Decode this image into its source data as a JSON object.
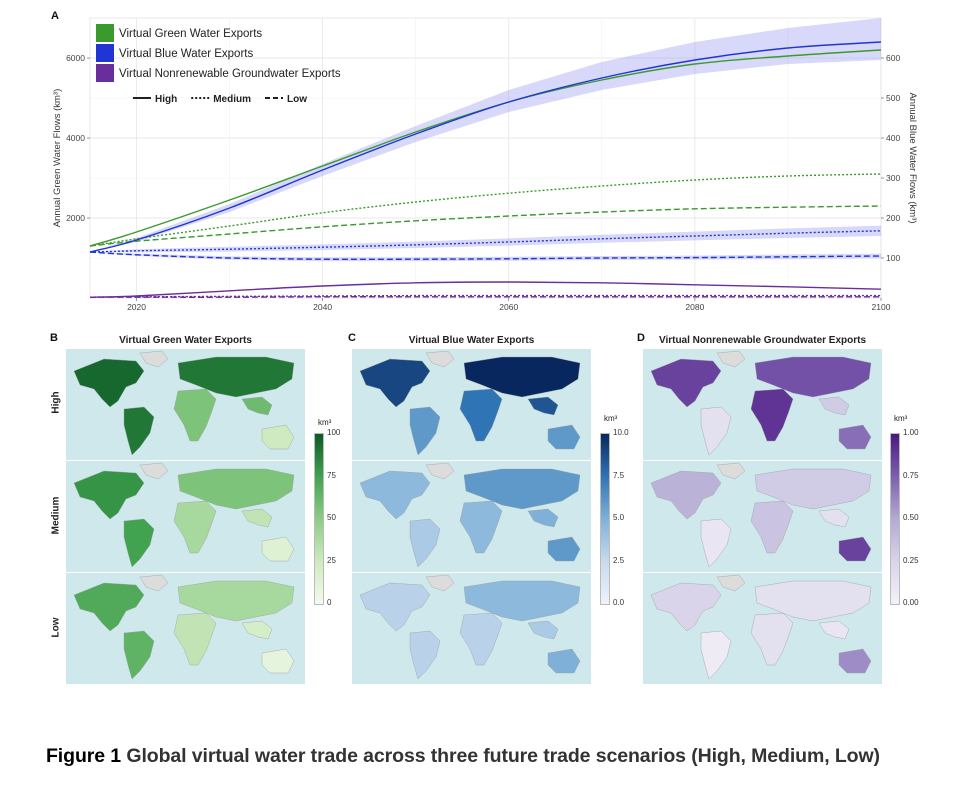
{
  "panel_letters": {
    "a": "A",
    "b": "B",
    "c": "C",
    "d": "D"
  },
  "chart_data": {
    "type": "line",
    "title": "",
    "xlabel": "",
    "ylabel": "Annual Green Water Flows (km³)",
    "y2label": "Annual Blue Water Flows (km³)",
    "xlim": [
      2015,
      2100
    ],
    "ylim": [
      0,
      7000
    ],
    "y2lim": [
      0,
      700
    ],
    "xticks": [
      2020,
      2040,
      2060,
      2080,
      2100
    ],
    "yticks": [
      2000,
      4000,
      6000
    ],
    "y2ticks": [
      100,
      200,
      300,
      400,
      500,
      600
    ],
    "grid": true,
    "legend_position": "top-left",
    "legend": [
      {
        "label": "Virtual Green Water Exports",
        "color": "#3a9a2e"
      },
      {
        "label": "Virtual Blue Water Exports",
        "color": "#2035d4"
      },
      {
        "label": "Virtual Nonrenewable Groundwater Exports",
        "color": "#6a2d9c"
      }
    ],
    "linetype_legend": [
      {
        "label": "High",
        "style": "solid"
      },
      {
        "label": "Medium",
        "style": "dotted"
      },
      {
        "label": "Low",
        "style": "dashed"
      }
    ],
    "series": [
      {
        "name": "Virtual Green Water Exports — High",
        "axis": "left",
        "style": "solid",
        "color": "#3a9a2e",
        "x": [
          2015,
          2020,
          2030,
          2040,
          2050,
          2060,
          2070,
          2080,
          2090,
          2100
        ],
        "y": [
          1300,
          1650,
          2450,
          3300,
          4150,
          4900,
          5450,
          5850,
          6050,
          6200
        ]
      },
      {
        "name": "Virtual Green Water Exports — Medium",
        "axis": "left",
        "style": "dotted",
        "color": "#3a9a2e",
        "x": [
          2015,
          2020,
          2030,
          2040,
          2050,
          2060,
          2070,
          2080,
          2090,
          2100
        ],
        "y": [
          1300,
          1480,
          1800,
          2130,
          2400,
          2620,
          2800,
          2950,
          3050,
          3100
        ]
      },
      {
        "name": "Virtual Green Water Exports — Low",
        "axis": "left",
        "style": "dashed",
        "color": "#3a9a2e",
        "x": [
          2015,
          2020,
          2030,
          2040,
          2050,
          2060,
          2070,
          2080,
          2090,
          2100
        ],
        "y": [
          1300,
          1420,
          1600,
          1780,
          1930,
          2050,
          2150,
          2230,
          2270,
          2300
        ]
      },
      {
        "name": "Virtual Blue Water Exports — High",
        "axis": "right",
        "style": "solid",
        "color": "#2035d4",
        "x": [
          2015,
          2020,
          2030,
          2040,
          2050,
          2060,
          2070,
          2080,
          2090,
          2100
        ],
        "y": [
          115,
          145,
          225,
          320,
          410,
          490,
          550,
          595,
          625,
          640
        ]
      },
      {
        "name": "Virtual Blue Water Exports — Medium",
        "axis": "right",
        "style": "dotted",
        "color": "#2035d4",
        "x": [
          2015,
          2020,
          2030,
          2040,
          2050,
          2060,
          2070,
          2080,
          2090,
          2100
        ],
        "y": [
          115,
          118,
          122,
          127,
          133,
          140,
          148,
          155,
          162,
          168
        ]
      },
      {
        "name": "Virtual Blue Water Exports — Low",
        "axis": "right",
        "style": "dashed",
        "color": "#2035d4",
        "x": [
          2015,
          2020,
          2030,
          2040,
          2050,
          2060,
          2070,
          2080,
          2090,
          2100
        ],
        "y": [
          115,
          108,
          100,
          97,
          97,
          98,
          100,
          101,
          103,
          105
        ]
      },
      {
        "name": "Virtual Nonrenewable Groundwater Exports — High",
        "axis": "right",
        "style": "solid",
        "color": "#6a2d9c",
        "x": [
          2015,
          2020,
          2030,
          2040,
          2050,
          2060,
          2070,
          2080,
          2090,
          2100
        ],
        "y": [
          2,
          5,
          18,
          30,
          38,
          40,
          38,
          33,
          28,
          22
        ]
      },
      {
        "name": "Virtual Nonrenewable Groundwater Exports — Medium",
        "axis": "right",
        "style": "dotted",
        "color": "#6a2d9c",
        "x": [
          2015,
          2020,
          2030,
          2040,
          2050,
          2060,
          2070,
          2080,
          2090,
          2100
        ],
        "y": [
          2,
          3,
          4,
          5,
          6,
          6,
          6,
          6,
          6,
          6
        ]
      },
      {
        "name": "Virtual Nonrenewable Groundwater Exports — Low",
        "axis": "right",
        "style": "dashed",
        "color": "#6a2d9c",
        "x": [
          2015,
          2020,
          2030,
          2040,
          2050,
          2060,
          2070,
          2080,
          2090,
          2100
        ],
        "y": [
          2,
          2,
          2,
          3,
          3,
          3,
          3,
          3,
          3,
          3
        ]
      }
    ],
    "bands": [
      {
        "series": "Virtual Blue Water Exports — High",
        "axis": "right",
        "color": "#8c8ff0",
        "x": [
          2015,
          2020,
          2030,
          2040,
          2050,
          2060,
          2070,
          2080,
          2090,
          2100
        ],
        "lower": [
          115,
          140,
          215,
          305,
          390,
          465,
          520,
          560,
          585,
          595
        ],
        "upper": [
          115,
          150,
          235,
          335,
          430,
          520,
          590,
          640,
          675,
          700
        ]
      },
      {
        "series": "Virtual Blue Water Exports — Medium",
        "axis": "right",
        "color": "#8c8ff0",
        "x": [
          2015,
          2020,
          2030,
          2040,
          2050,
          2060,
          2070,
          2080,
          2090,
          2100
        ],
        "lower": [
          115,
          114,
          116,
          120,
          125,
          131,
          138,
          144,
          150,
          155
        ],
        "upper": [
          115,
          122,
          128,
          134,
          141,
          149,
          158,
          166,
          174,
          181
        ]
      },
      {
        "series": "Virtual Blue Water Exports — Low",
        "axis": "right",
        "color": "#8c8ff0",
        "x": [
          2015,
          2020,
          2030,
          2040,
          2050,
          2060,
          2070,
          2080,
          2090,
          2100
        ],
        "lower": [
          115,
          105,
          96,
          92,
          92,
          93,
          95,
          96,
          97,
          99
        ],
        "upper": [
          115,
          111,
          104,
          102,
          102,
          103,
          105,
          106,
          109,
          111
        ]
      }
    ]
  },
  "maps": {
    "row_labels": [
      "High",
      "Medium",
      "Low"
    ],
    "unit": "km³",
    "columns": [
      {
        "title": "Virtual Green Water Exports",
        "palette": [
          "#f4fbee",
          "#cfeac0",
          "#8ccc85",
          "#41a24f",
          "#0c5a26"
        ],
        "colorbar_ticks": [
          "100",
          "75",
          "50",
          "25",
          "0"
        ],
        "intensity": [
          [
            0.95,
            0.35,
            0.9,
            0.55,
            0.9,
            0.6,
            0.25
          ],
          [
            0.8,
            0.25,
            0.75,
            0.4,
            0.55,
            0.3,
            0.15
          ],
          [
            0.7,
            0.15,
            0.65,
            0.3,
            0.4,
            0.2,
            0.1
          ]
        ]
      },
      {
        "title": "Virtual Blue Water Exports",
        "palette": [
          "#eef3fa",
          "#c7daee",
          "#7fb1d8",
          "#2f74b5",
          "#08275e"
        ],
        "colorbar_ticks": [
          "10.0",
          "7.5",
          "5.0",
          "2.5",
          "0.0"
        ],
        "intensity": [
          [
            0.9,
            0.3,
            0.6,
            0.75,
            1.0,
            0.85,
            0.6
          ],
          [
            0.45,
            0.2,
            0.35,
            0.45,
            0.6,
            0.5,
            0.6
          ],
          [
            0.3,
            0.15,
            0.3,
            0.3,
            0.45,
            0.35,
            0.5
          ]
        ]
      },
      {
        "title": "Virtual Nonrenewable Groundwater Exports",
        "palette": [
          "#f3f1f8",
          "#d9d4ea",
          "#b3aad3",
          "#7d5fb0",
          "#4b1783"
        ],
        "colorbar_ticks": [
          "1.00",
          "0.75",
          "0.50",
          "0.25",
          "0.00"
        ],
        "intensity": [
          [
            0.85,
            0.1,
            0.15,
            0.9,
            0.8,
            0.3,
            0.7
          ],
          [
            0.45,
            0.05,
            0.1,
            0.35,
            0.3,
            0.15,
            0.85
          ],
          [
            0.25,
            0.05,
            0.05,
            0.15,
            0.15,
            0.1,
            0.6
          ]
        ]
      }
    ]
  },
  "caption": {
    "figure_label": "Figure 1",
    "text": "Global virtual water trade across three future trade scenarios (High, Medium, Low)"
  }
}
